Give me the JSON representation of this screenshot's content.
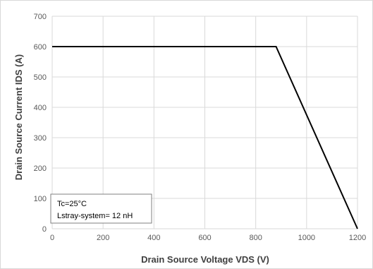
{
  "chart_data": {
    "type": "line",
    "xlabel": "Drain Source Voltage VDS (V)",
    "ylabel": "Drain Source Current IDS (A)",
    "xlim": [
      0,
      1200
    ],
    "ylim": [
      0,
      700
    ],
    "x_ticks": [
      0,
      200,
      400,
      600,
      800,
      1000,
      1200
    ],
    "y_ticks": [
      0,
      100,
      200,
      300,
      400,
      500,
      600,
      700
    ],
    "grid": true,
    "series": [
      {
        "x": [
          0,
          880,
          1200
        ],
        "y": [
          600,
          600,
          0
        ],
        "color": "#000000"
      }
    ],
    "annotation": {
      "lines": [
        "Tc=25°C",
        "Lstray-system= 12 nH"
      ],
      "placement": "bottom-left"
    }
  }
}
